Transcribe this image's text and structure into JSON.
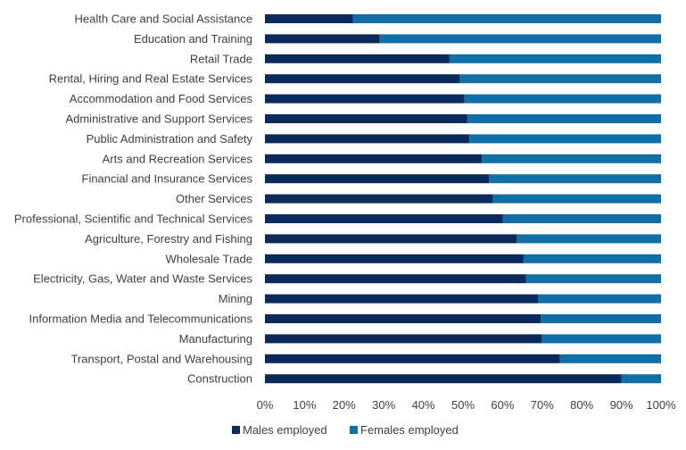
{
  "chart_data": {
    "type": "bar",
    "orientation": "horizontal",
    "stacked": "percent",
    "title": "",
    "xlabel": "",
    "ylabel": "",
    "xlim": [
      0,
      100
    ],
    "x_ticks": [
      "0%",
      "10%",
      "20%",
      "30%",
      "40%",
      "50%",
      "60%",
      "70%",
      "80%",
      "90%",
      "100%"
    ],
    "grid": false,
    "legend_position": "bottom",
    "categories": [
      "Health Care and Social Assistance",
      "Education and Training",
      "Retail Trade",
      "Rental, Hiring and Real Estate Services",
      "Accommodation and Food Services",
      "Administrative and Support Services",
      "Public Administration and Safety",
      "Arts and Recreation Services",
      "Financial and Insurance Services",
      "Other Services",
      "Professional, Scientific and Technical Services",
      "Agriculture, Forestry and Fishing",
      "Wholesale Trade",
      "Electricity, Gas, Water and Waste Services",
      "Mining",
      "Information Media and Telecommunications",
      "Manufacturing",
      "Transport, Postal and Warehousing",
      "Construction"
    ],
    "series": [
      {
        "name": "Males employed",
        "color": "#0b2a5c",
        "values": [
          22.2,
          29,
          46.6,
          49.1,
          50.4,
          51.1,
          51.6,
          54.8,
          56.6,
          57.6,
          60.1,
          63.6,
          65.2,
          65.9,
          69,
          69.6,
          69.9,
          74.5,
          90
        ]
      },
      {
        "name": "Females employed",
        "color": "#0f6fa6",
        "values": [
          77.8,
          71,
          53.4,
          50.9,
          49.6,
          48.9,
          48.4,
          45.2,
          43.4,
          42.4,
          39.9,
          36.4,
          34.8,
          34.1,
          31,
          30.4,
          30.1,
          25.5,
          10
        ]
      }
    ]
  }
}
